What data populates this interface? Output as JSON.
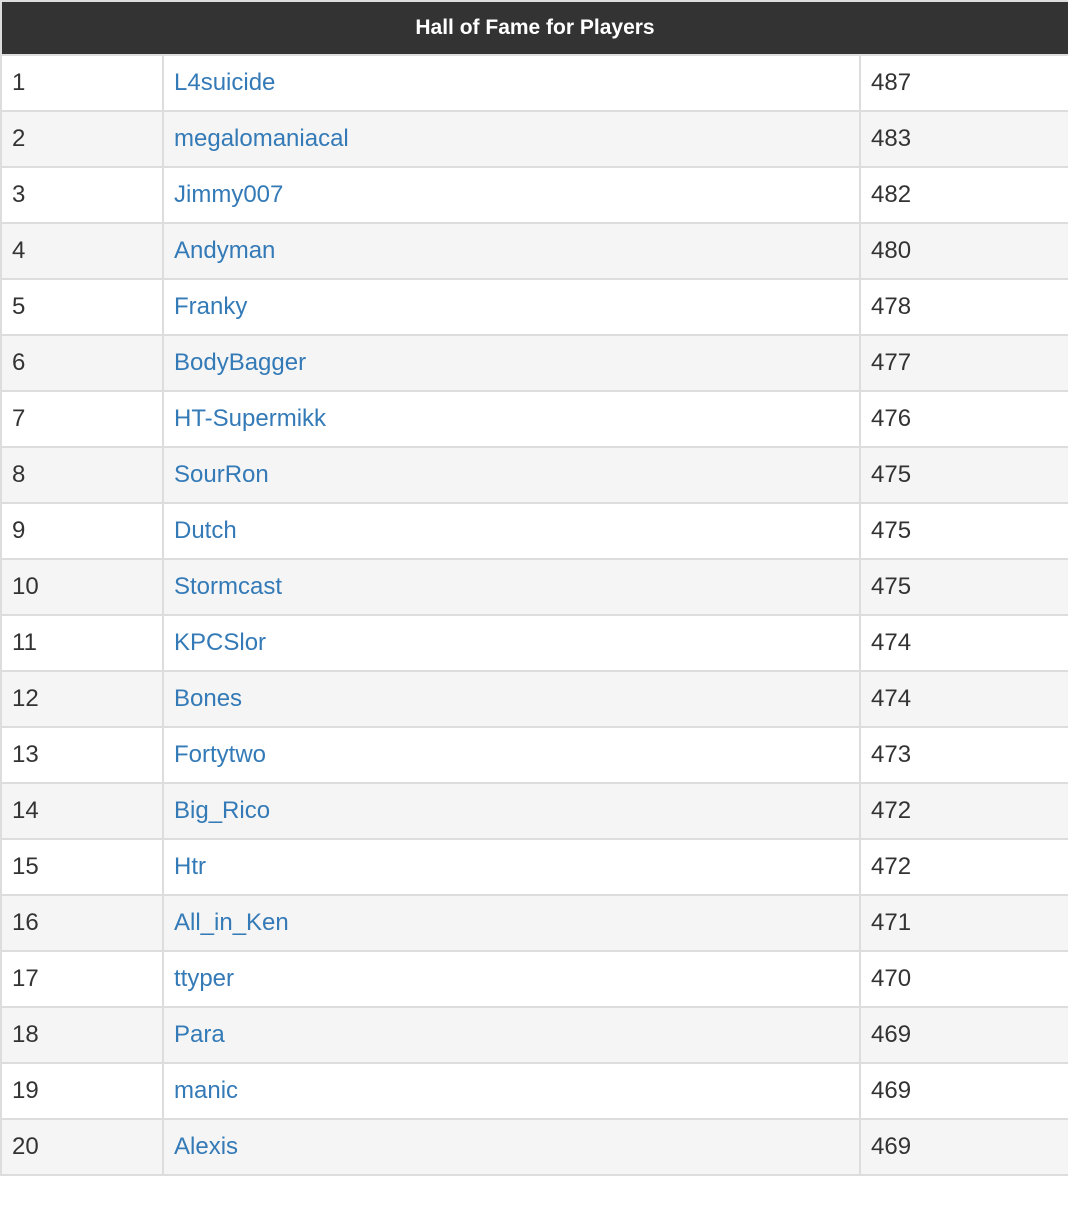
{
  "table": {
    "title": "Hall of Fame for Players",
    "link_color": "#337ab7",
    "header_bg": "#333333",
    "rows": [
      {
        "rank": "1",
        "name": "L4suicide",
        "score": "487"
      },
      {
        "rank": "2",
        "name": "megalomaniacal",
        "score": "483"
      },
      {
        "rank": "3",
        "name": "Jimmy007",
        "score": "482"
      },
      {
        "rank": "4",
        "name": "Andyman",
        "score": "480"
      },
      {
        "rank": "5",
        "name": "Franky",
        "score": "478"
      },
      {
        "rank": "6",
        "name": "BodyBagger",
        "score": "477"
      },
      {
        "rank": "7",
        "name": "HT-Supermikk",
        "score": "476"
      },
      {
        "rank": "8",
        "name": "SourRon",
        "score": "475"
      },
      {
        "rank": "9",
        "name": "Dutch",
        "score": "475"
      },
      {
        "rank": "10",
        "name": "Stormcast",
        "score": "475"
      },
      {
        "rank": "11",
        "name": "KPCSlor",
        "score": "474"
      },
      {
        "rank": "12",
        "name": "Bones",
        "score": "474"
      },
      {
        "rank": "13",
        "name": "Fortytwo",
        "score": "473"
      },
      {
        "rank": "14",
        "name": "Big_Rico",
        "score": "472"
      },
      {
        "rank": "15",
        "name": "Htr",
        "score": "472"
      },
      {
        "rank": "16",
        "name": "All_in_Ken",
        "score": "471"
      },
      {
        "rank": "17",
        "name": "ttyper",
        "score": "470"
      },
      {
        "rank": "18",
        "name": "Para",
        "score": "469"
      },
      {
        "rank": "19",
        "name": "manic",
        "score": "469"
      },
      {
        "rank": "20",
        "name": "Alexis",
        "score": "469"
      }
    ]
  }
}
